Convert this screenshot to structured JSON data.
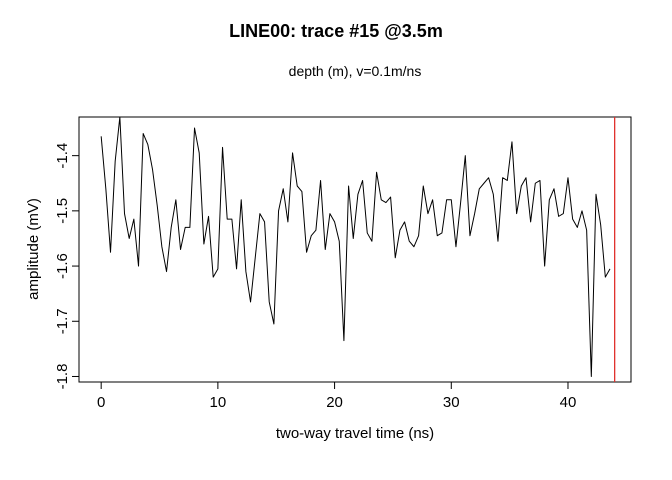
{
  "chart_data": {
    "type": "line",
    "title": "LINE00: trace #15  @3.5m",
    "subtitle": "depth (m),   v=0.1m/ns",
    "xlabel": "two-way travel time (ns)",
    "ylabel": "amplitude (mV)",
    "xlim": [
      -1.9,
      45.4
    ],
    "ylim": [
      -1.81,
      -1.33
    ],
    "x_ticks": [
      0,
      10,
      20,
      30,
      40
    ],
    "y_ticks": [
      -1.8,
      -1.7,
      -1.6,
      -1.5,
      -1.4
    ],
    "x_tick_labels": [
      "0",
      "10",
      "20",
      "30",
      "40"
    ],
    "y_tick_labels": [
      "-1.8",
      "-1.7",
      "-1.6",
      "-1.5",
      "-1.4"
    ],
    "grid": false,
    "vline": {
      "x": 44,
      "color": "#e0302c"
    },
    "line_color": "#000000",
    "series": [
      {
        "x_start": 0,
        "x_step": 0.4,
        "values": [
          -1.365,
          -1.46,
          -1.575,
          -1.41,
          -1.33,
          -1.505,
          -1.55,
          -1.515,
          -1.6,
          -1.36,
          -1.38,
          -1.425,
          -1.49,
          -1.565,
          -1.61,
          -1.53,
          -1.48,
          -1.57,
          -1.53,
          -1.53,
          -1.35,
          -1.395,
          -1.56,
          -1.51,
          -1.62,
          -1.605,
          -1.385,
          -1.515,
          -1.515,
          -1.605,
          -1.48,
          -1.61,
          -1.665,
          -1.585,
          -1.505,
          -1.52,
          -1.665,
          -1.705,
          -1.5,
          -1.46,
          -1.52,
          -1.395,
          -1.455,
          -1.465,
          -1.575,
          -1.545,
          -1.535,
          -1.445,
          -1.57,
          -1.505,
          -1.52,
          -1.555,
          -1.735,
          -1.455,
          -1.55,
          -1.47,
          -1.445,
          -1.54,
          -1.555,
          -1.43,
          -1.48,
          -1.485,
          -1.475,
          -1.585,
          -1.535,
          -1.52,
          -1.555,
          -1.565,
          -1.545,
          -1.455,
          -1.505,
          -1.48,
          -1.545,
          -1.54,
          -1.48,
          -1.48,
          -1.565,
          -1.485,
          -1.4,
          -1.545,
          -1.505,
          -1.46,
          -1.45,
          -1.44,
          -1.47,
          -1.555,
          -1.44,
          -1.445,
          -1.375,
          -1.505,
          -1.455,
          -1.44,
          -1.52,
          -1.45,
          -1.445,
          -1.6,
          -1.48,
          -1.46,
          -1.51,
          -1.505,
          -1.44,
          -1.515,
          -1.53,
          -1.5,
          -1.535,
          -1.8,
          -1.47,
          -1.525,
          -1.62,
          -1.605
        ]
      }
    ]
  }
}
